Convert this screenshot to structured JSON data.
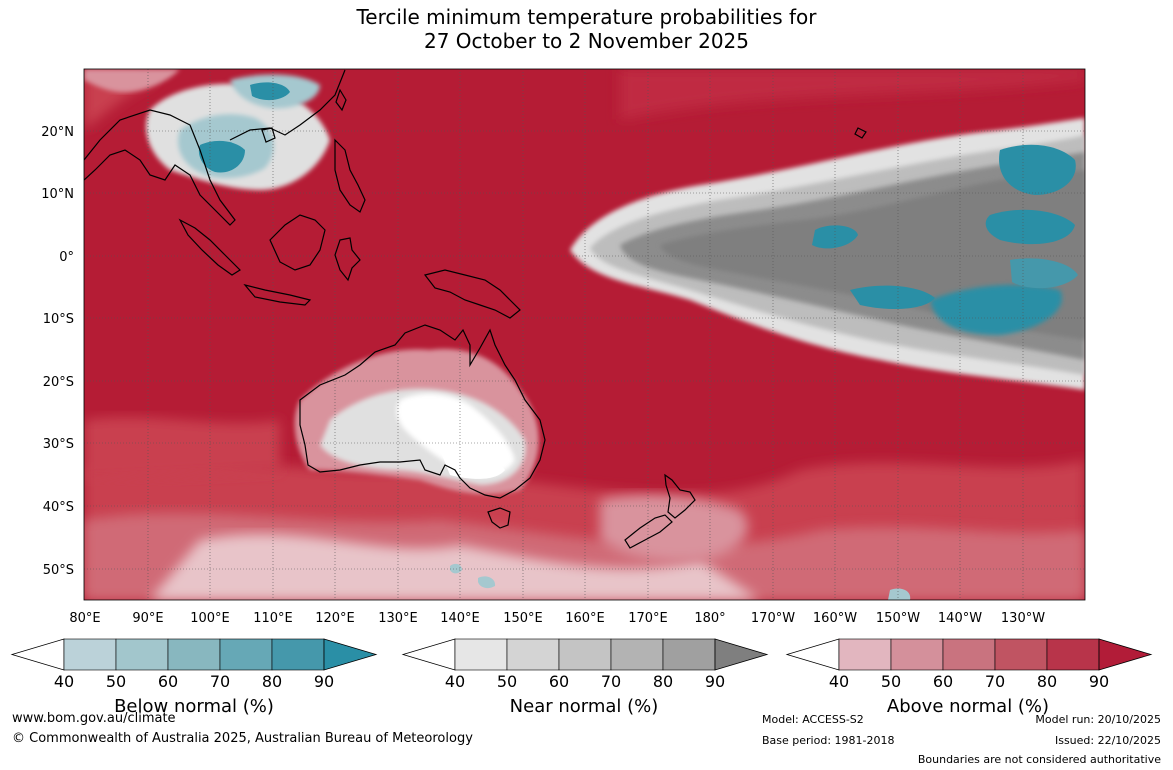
{
  "title": {
    "line1": "Tercile minimum temperature probabilities for",
    "line2": "27 October to 2 November 2025"
  },
  "map": {
    "lon_labels": [
      "80°E",
      "90°E",
      "100°E",
      "110°E",
      "120°E",
      "130°E",
      "140°E",
      "150°E",
      "160°E",
      "170°E",
      "180°",
      "170°W",
      "160°W",
      "150°W",
      "140°W",
      "130°W"
    ],
    "lat_labels": [
      "20°N",
      "10°N",
      "0°",
      "10°S",
      "20°S",
      "30°S",
      "40°S",
      "50°S"
    ],
    "colors": {
      "above": "#b51c35",
      "above_light": "#c9414f",
      "near": "#7f7f7f",
      "near_light": "#bdbdbd",
      "near_pale": "#e2e2e2",
      "below": "#2a8fa6",
      "below_light": "#a5c8cf",
      "land_outline": "#000000"
    }
  },
  "colorbars": [
    {
      "name": "below",
      "label": "Below normal (%)",
      "ticks": [
        "40",
        "50",
        "60",
        "70",
        "80",
        "90"
      ],
      "colors": [
        "#ffffff",
        "#bbd2d9",
        "#a2c6cc",
        "#88b7bf",
        "#66a8b6",
        "#4598ab",
        "#2a8fa6"
      ]
    },
    {
      "name": "near",
      "label": "Near normal (%)",
      "ticks": [
        "40",
        "50",
        "60",
        "70",
        "80",
        "90"
      ],
      "colors": [
        "#ffffff",
        "#e6e6e6",
        "#d4d4d4",
        "#c4c4c4",
        "#b3b3b3",
        "#a0a0a0",
        "#7f7f7f"
      ]
    },
    {
      "name": "above",
      "label": "Above normal (%)",
      "ticks": [
        "40",
        "50",
        "60",
        "70",
        "80",
        "90"
      ],
      "colors": [
        "#ffffff",
        "#e2b6bf",
        "#d4909b",
        "#c9737f",
        "#c05462",
        "#b8344a",
        "#b21c38"
      ]
    }
  ],
  "footer": {
    "website": "www.bom.gov.au/climate",
    "copyright": "© Commonwealth of Australia 2025, Australian Bureau of Meteorology",
    "model": "Model: ACCESS-S2",
    "base_period": "Base period: 1981-2018",
    "model_run": "Model run: 20/10/2025",
    "issued": "Issued: 22/10/2025",
    "disclaimer": "Boundaries are not considered authoritative"
  }
}
